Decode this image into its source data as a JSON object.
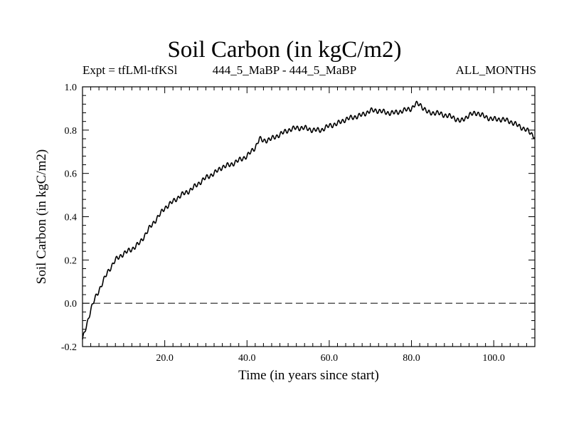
{
  "chart_data": {
    "type": "line",
    "title": "Soil Carbon (in kgC/m2)",
    "subtitle_left": "Expt = tfLMl-tfKSl",
    "subtitle_center": "444_5_MaBP - 444_5_MaBP",
    "subtitle_right": "ALL_MONTHS",
    "xlabel": "Time (in years since start)",
    "ylabel": "Soil Carbon (in kgC/m2)",
    "xlim": [
      0,
      110
    ],
    "ylim": [
      -0.2,
      1.0
    ],
    "x_ticks": [
      20,
      40,
      60,
      80,
      100
    ],
    "x_tick_labels": [
      "20.0",
      "40.0",
      "60.0",
      "80.0",
      "100.0"
    ],
    "y_ticks": [
      -0.2,
      0.0,
      0.2,
      0.4,
      0.6,
      0.8,
      1.0
    ],
    "y_tick_labels": [
      "-0.2",
      "0.0",
      "0.2",
      "0.4",
      "0.6",
      "0.8",
      "1.0"
    ],
    "reference_line": {
      "y": 0.0,
      "style": "dashed"
    },
    "series": [
      {
        "name": "Soil Carbon",
        "x": [
          0,
          1,
          2,
          3,
          4,
          5,
          6,
          7,
          8,
          10,
          12,
          14,
          16,
          18,
          20,
          22,
          24,
          26,
          28,
          30,
          32,
          34,
          36,
          38,
          40,
          41,
          42,
          43,
          44,
          46,
          48,
          50,
          52,
          54,
          56,
          58,
          60,
          62,
          64,
          66,
          68,
          70,
          72,
          74,
          76,
          78,
          80,
          81,
          82,
          83,
          84,
          86,
          88,
          90,
          92,
          94,
          96,
          98,
          100,
          102,
          104,
          106,
          108,
          110
        ],
        "values": [
          -0.17,
          -0.1,
          -0.03,
          0.02,
          0.06,
          0.1,
          0.14,
          0.17,
          0.2,
          0.23,
          0.25,
          0.28,
          0.34,
          0.39,
          0.44,
          0.47,
          0.5,
          0.52,
          0.55,
          0.58,
          0.6,
          0.63,
          0.64,
          0.66,
          0.68,
          0.7,
          0.72,
          0.76,
          0.75,
          0.76,
          0.78,
          0.8,
          0.81,
          0.81,
          0.8,
          0.8,
          0.82,
          0.83,
          0.85,
          0.86,
          0.87,
          0.89,
          0.89,
          0.88,
          0.88,
          0.89,
          0.9,
          0.92,
          0.92,
          0.9,
          0.88,
          0.88,
          0.87,
          0.86,
          0.84,
          0.87,
          0.88,
          0.86,
          0.85,
          0.85,
          0.84,
          0.82,
          0.8,
          0.77
        ]
      }
    ]
  }
}
